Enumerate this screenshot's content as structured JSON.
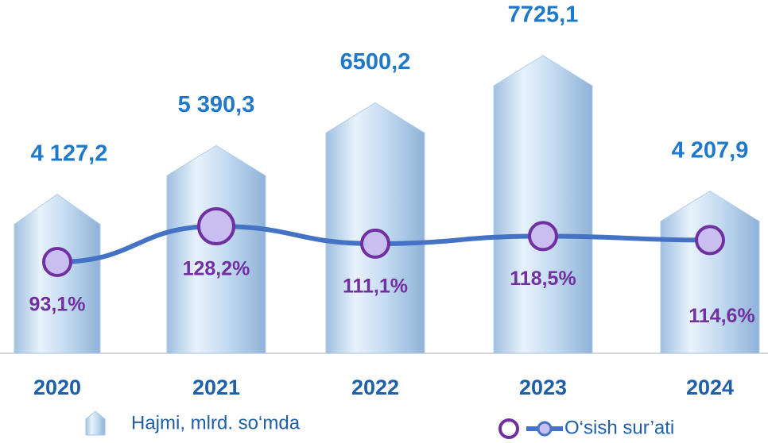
{
  "chart_data": {
    "type": "bar",
    "categories": [
      "2020",
      "2021",
      "2022",
      "2023",
      "2024"
    ],
    "series": [
      {
        "name": "Hajmi, mlrd. so‘mda",
        "type": "bar",
        "color": "#bcd6ef",
        "values": [
          4127.2,
          5390.3,
          6500.2,
          7725.1,
          4207.9
        ],
        "value_labels": [
          "4 127,2",
          "5 390,3",
          "6500,2",
          "7725,1",
          "4 207,9"
        ]
      },
      {
        "name": "O‘sish sur’ati",
        "type": "line",
        "axis": "y2",
        "color": "#4472c4",
        "marker_color": "#7030a0",
        "values": [
          93.1,
          128.2,
          111.1,
          118.5,
          114.6
        ],
        "value_labels": [
          "93,1%",
          "128,2%",
          "111,1%",
          "118,5%",
          "114,6%"
        ]
      }
    ]
  }
}
